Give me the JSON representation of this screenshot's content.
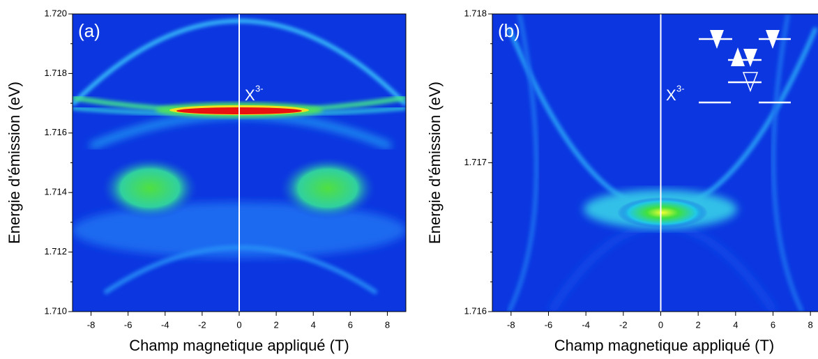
{
  "chart_data": [
    {
      "type": "heatmap",
      "panel_label": "(a)",
      "annotation": {
        "text": "X",
        "superscript": "3-"
      },
      "x_label": "Champ magnetique appliqué (T)",
      "y_label": "Energie d'émission (eV)",
      "xlim": [
        -9,
        9
      ],
      "xticks": [
        -8,
        -6,
        -4,
        -2,
        0,
        2,
        4,
        6,
        8
      ],
      "ylim": [
        1.71,
        1.72
      ],
      "yticks": [
        {
          "value": 1.71,
          "label": "1.710"
        },
        {
          "value": 1.712,
          "label": "1.712"
        },
        {
          "value": 1.714,
          "label": "1.714"
        },
        {
          "value": 1.716,
          "label": "1.716"
        },
        {
          "value": 1.718,
          "label": "1.718"
        },
        {
          "value": 1.72,
          "label": "1.720"
        }
      ],
      "marker_line_x": 0
    },
    {
      "type": "heatmap",
      "panel_label": "(b)",
      "annotation": {
        "text": "X",
        "superscript": "3-"
      },
      "x_label": "Champ magnetique appliqué (T)",
      "y_label": "Energie d'émission (eV)",
      "xlim": [
        -9,
        9
      ],
      "xticks": [
        -8,
        -6,
        -4,
        -2,
        0,
        2,
        4,
        6,
        8
      ],
      "ylim": [
        1.716,
        1.718
      ],
      "yticks": [
        {
          "value": 1.716,
          "label": "1.716"
        },
        {
          "value": 1.717,
          "label": "1.717"
        },
        {
          "value": 1.718,
          "label": "1.718"
        }
      ],
      "marker_line_x": 0
    }
  ]
}
